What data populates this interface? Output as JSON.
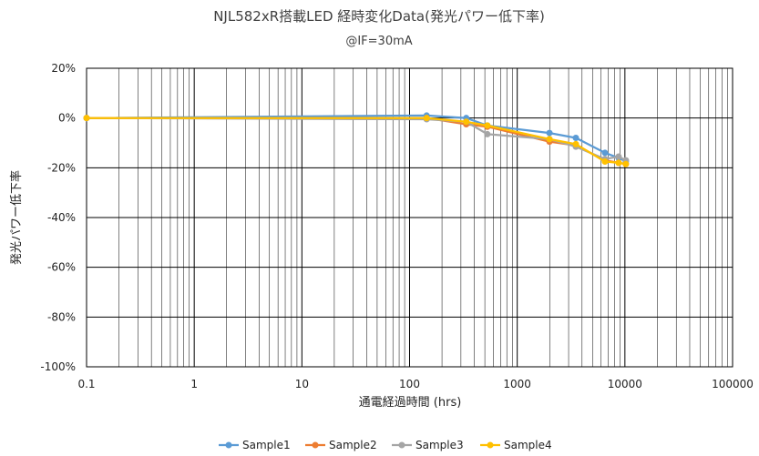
{
  "chart_data": {
    "type": "line",
    "title": "NJL582xR搭載LED 経時変化Data(発光パワー低下率)",
    "subtitle": "@IF=30mA",
    "xlabel": "通電経過時間 (hrs)",
    "ylabel": "発光パワー低下率",
    "xscale": "log",
    "xlim": [
      0.1,
      100000
    ],
    "ylim": [
      -100,
      20
    ],
    "x_tick_labels": [
      "0.1",
      "1",
      "10",
      "100",
      "1000",
      "10000",
      "100000"
    ],
    "y_tick_labels": [
      "20%",
      "0%",
      "-20%",
      "-40%",
      "-60%",
      "-80%",
      "-100%"
    ],
    "grid": true,
    "legend_position": "bottom",
    "series": [
      {
        "name": "Sample1",
        "color": "#5b9bd5",
        "x": [
          0.1,
          144,
          336,
          528,
          1992,
          3504,
          6528,
          8736,
          10200
        ],
        "y": [
          0,
          1.0,
          0.0,
          -3.0,
          -6.0,
          -8.0,
          -14.0,
          -16.0,
          -17.5
        ]
      },
      {
        "name": "Sample2",
        "color": "#ed7d31",
        "x": [
          0.1,
          144,
          336,
          528,
          1992,
          3504,
          6528,
          8736,
          10200
        ],
        "y": [
          0,
          0.0,
          -2.5,
          -3.5,
          -9.5,
          -11.0,
          -17.0,
          -18.0,
          -18.5
        ]
      },
      {
        "name": "Sample3",
        "color": "#a5a5a5",
        "x": [
          0.1,
          144,
          336,
          528,
          1992,
          3504,
          6528,
          8736,
          10200
        ],
        "y": [
          0,
          -0.5,
          -1.5,
          -6.5,
          -8.5,
          -11.5,
          -16.5,
          -15.5,
          -17.0
        ]
      },
      {
        "name": "Sample4",
        "color": "#ffc000",
        "x": [
          0.1,
          144,
          336,
          528,
          1992,
          3504,
          6528,
          8736,
          10200
        ],
        "y": [
          0,
          0.0,
          -1.5,
          -3.0,
          -8.5,
          -10.5,
          -17.5,
          -18.0,
          -18.5
        ]
      }
    ]
  }
}
